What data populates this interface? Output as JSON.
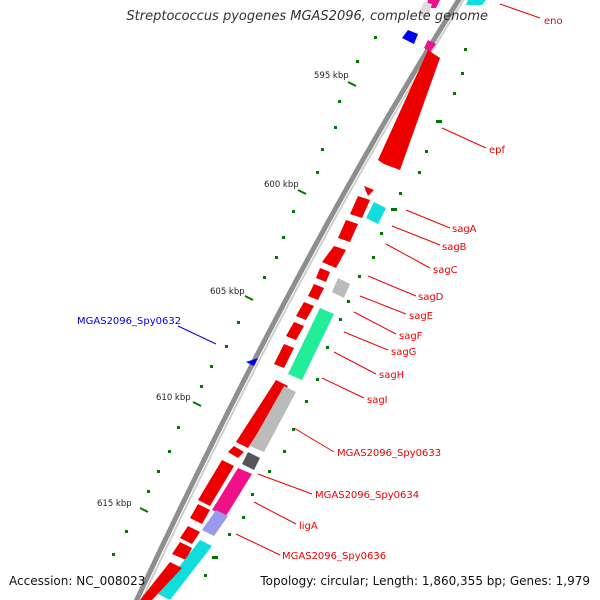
{
  "title": "Streptococcus pyogenes MGAS2096, complete genome",
  "footer": {
    "accession": "Accession: NC_008023",
    "topology": "Topology: circular; Length: 1,860,355 bp; Genes: 1,979"
  },
  "colors": {
    "red": "#ee0000",
    "cyan": "#11dddd",
    "gray": "#bbbbbb",
    "darkgray": "#555555",
    "green": "#22ee99",
    "magenta": "#ee1188",
    "lavender": "#9999ee",
    "blue": "#0000ee",
    "tick": "#007700"
  },
  "scale_labels": [
    "595 kbp",
    "600 kbp",
    "605 kbp",
    "610 kbp",
    "615 kbp"
  ],
  "gene_labels": [
    "eno",
    "epf",
    "sagA",
    "sagB",
    "sagC",
    "sagD",
    "sagE",
    "sagF",
    "sagG",
    "sagH",
    "sagI",
    "MGAS2096_Spy0633",
    "MGAS2096_Spy0634",
    "ligA",
    "MGAS2096_Spy0636",
    "MGAS2096_Spy0632"
  ]
}
